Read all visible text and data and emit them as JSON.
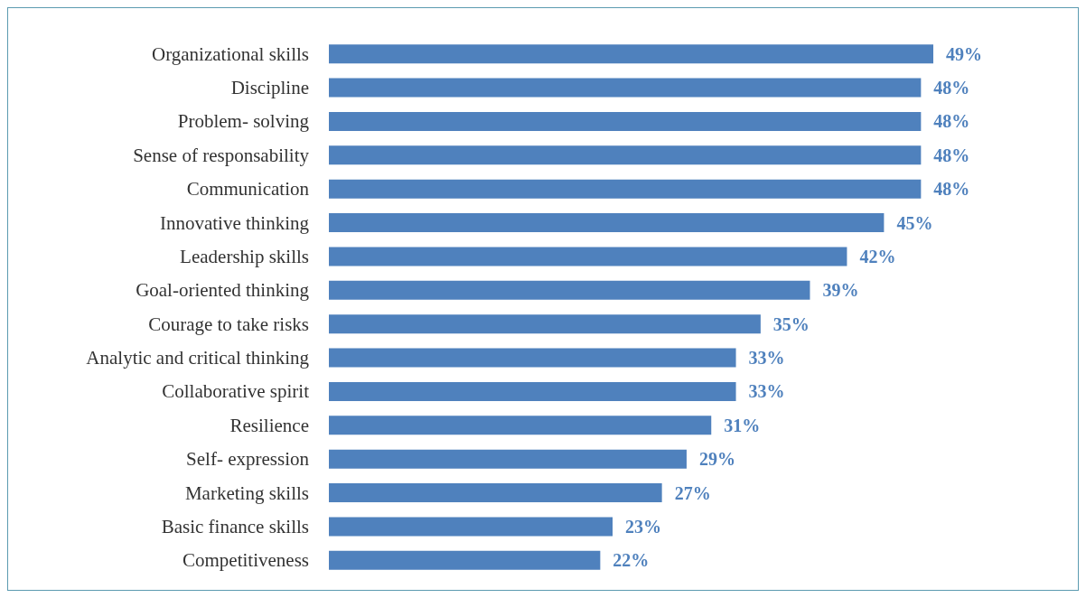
{
  "chart_data": {
    "type": "bar",
    "orientation": "horizontal",
    "color": "#4f81bd",
    "categories": [
      "Organizational skills",
      "Discipline",
      "Problem- solving",
      "Sense of responsability",
      "Communication",
      "Innovative thinking",
      "Leadership skills",
      "Goal-oriented thinking",
      "Courage to take risks",
      "Analytic and critical thinking",
      "Collaborative spirit",
      "Resilience",
      "Self- expression",
      "Marketing skills",
      "Basic finance skills",
      "Competitiveness"
    ],
    "values": [
      49,
      48,
      48,
      48,
      48,
      45,
      42,
      39,
      35,
      33,
      33,
      31,
      29,
      27,
      23,
      22
    ],
    "value_labels": [
      "49%",
      "48%",
      "48%",
      "48%",
      "48%",
      "45%",
      "42%",
      "39%",
      "35%",
      "33%",
      "33%",
      "31%",
      "29%",
      "27%",
      "23%",
      "22%"
    ]
  }
}
